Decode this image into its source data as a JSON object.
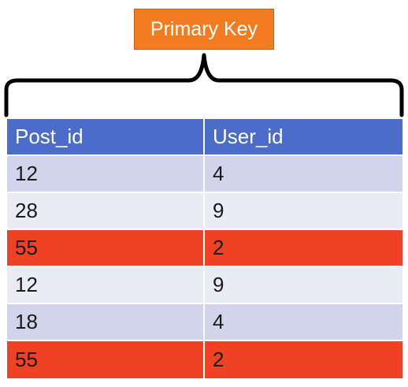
{
  "label": "Primary Key",
  "colors": {
    "label_bg": "#f47c20",
    "header_bg": "#4c6cc9",
    "row_dark": "#d2d4eb",
    "row_light": "#eaebf5",
    "highlight": "#ef4124"
  },
  "table": {
    "headers": [
      "Post_id",
      "User_id"
    ],
    "rows": [
      {
        "post_id": "12",
        "user_id": "4",
        "highlighted": false
      },
      {
        "post_id": "28",
        "user_id": "9",
        "highlighted": false
      },
      {
        "post_id": "55",
        "user_id": "2",
        "highlighted": true
      },
      {
        "post_id": "12",
        "user_id": "9",
        "highlighted": false
      },
      {
        "post_id": "18",
        "user_id": "4",
        "highlighted": false
      },
      {
        "post_id": "55",
        "user_id": "2",
        "highlighted": true
      }
    ]
  }
}
